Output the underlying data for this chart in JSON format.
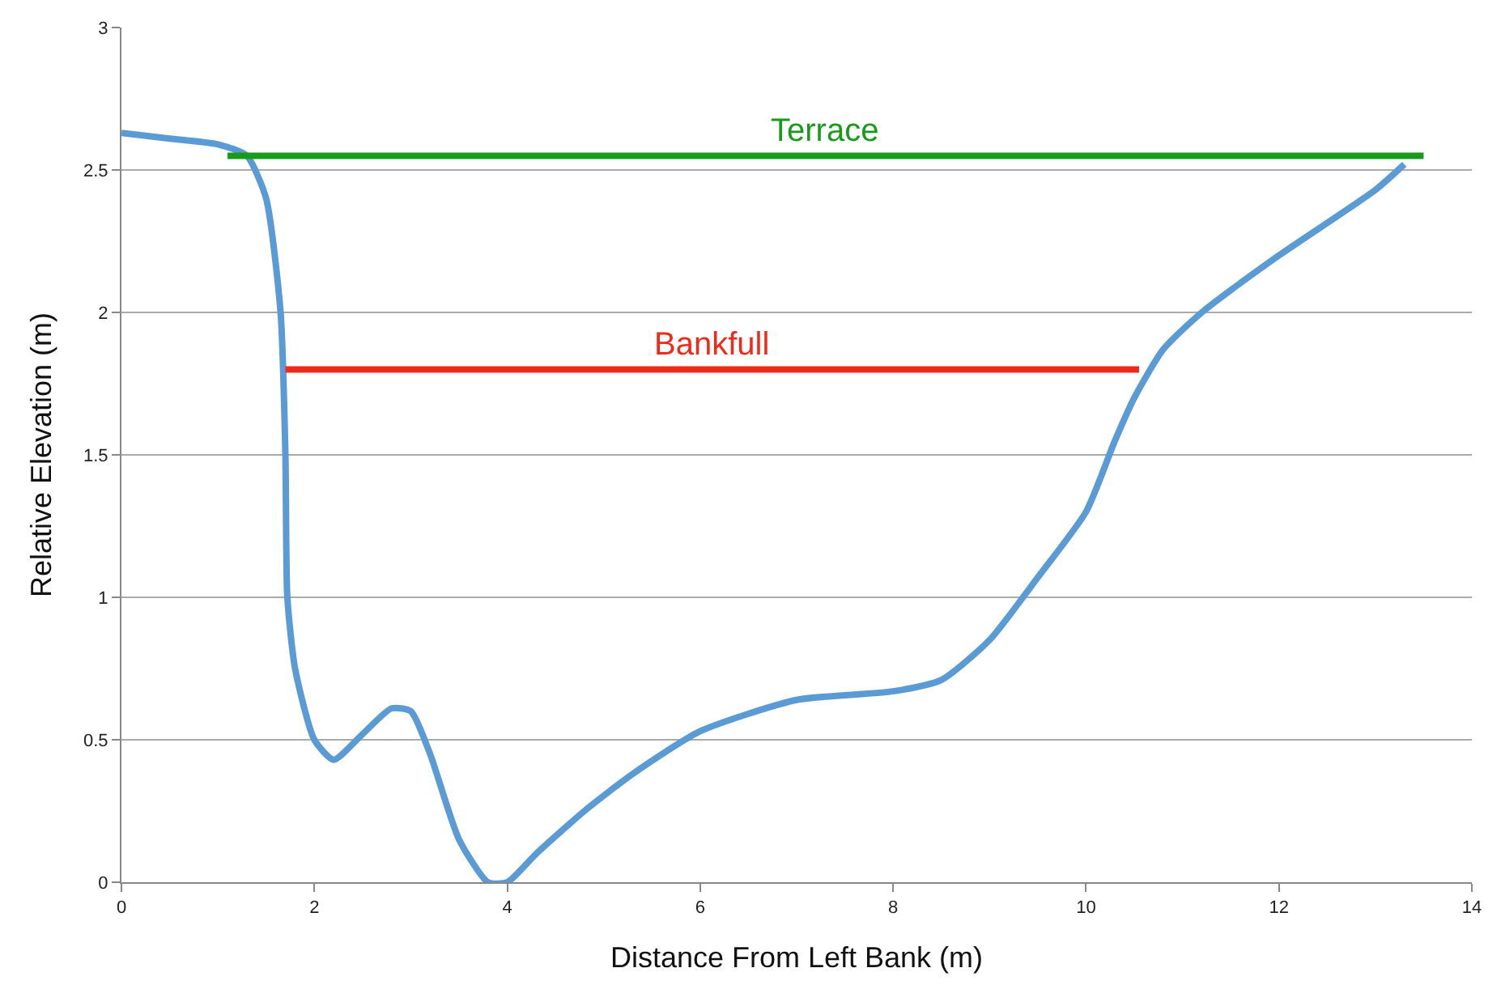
{
  "chart_data": {
    "type": "line",
    "xlabel": "Distance From Left Bank (m)",
    "ylabel": "Relative Elevation (m)",
    "xlim": [
      0,
      14
    ],
    "xticks": [
      0,
      2,
      4,
      6,
      8,
      10,
      12,
      14
    ],
    "ylim": [
      0,
      3
    ],
    "yticks": [
      0,
      0.5,
      1,
      1.5,
      2,
      2.5,
      3
    ],
    "grid": "y",
    "legend": false,
    "marker": "none",
    "line_style": "solid",
    "series": [
      {
        "color": "#5b9bd5",
        "x": [
          0,
          0.5,
          1,
          1.3,
          1.5,
          1.65,
          1.7,
          1.72,
          1.8,
          2.0,
          2.2,
          2.5,
          2.8,
          3.0,
          3.2,
          3.5,
          3.8,
          4.0,
          4.3,
          4.8,
          5.3,
          6,
          7,
          8,
          8.5,
          9,
          9.5,
          10,
          10.3,
          10.5,
          10.8,
          11.2,
          12,
          13,
          13.3
        ],
        "values": [
          2.63,
          2.61,
          2.59,
          2.55,
          2.4,
          2.0,
          1.5,
          1.0,
          0.75,
          0.5,
          0.43,
          0.52,
          0.61,
          0.6,
          0.45,
          0.15,
          0.0,
          0.0,
          0.1,
          0.25,
          0.38,
          0.53,
          0.64,
          0.67,
          0.71,
          0.85,
          1.07,
          1.3,
          1.55,
          1.7,
          1.87,
          2.0,
          2.2,
          2.43,
          2.52
        ]
      },
      {
        "name": "Terrace",
        "color": "#1a9a1a",
        "x": [
          1.1,
          13.5
        ],
        "values": [
          2.55,
          2.55
        ]
      },
      {
        "name": "Bankfull",
        "color": "#ee2b1b",
        "x": [
          1.7,
          10.55
        ],
        "values": [
          1.8,
          1.8
        ]
      }
    ]
  }
}
